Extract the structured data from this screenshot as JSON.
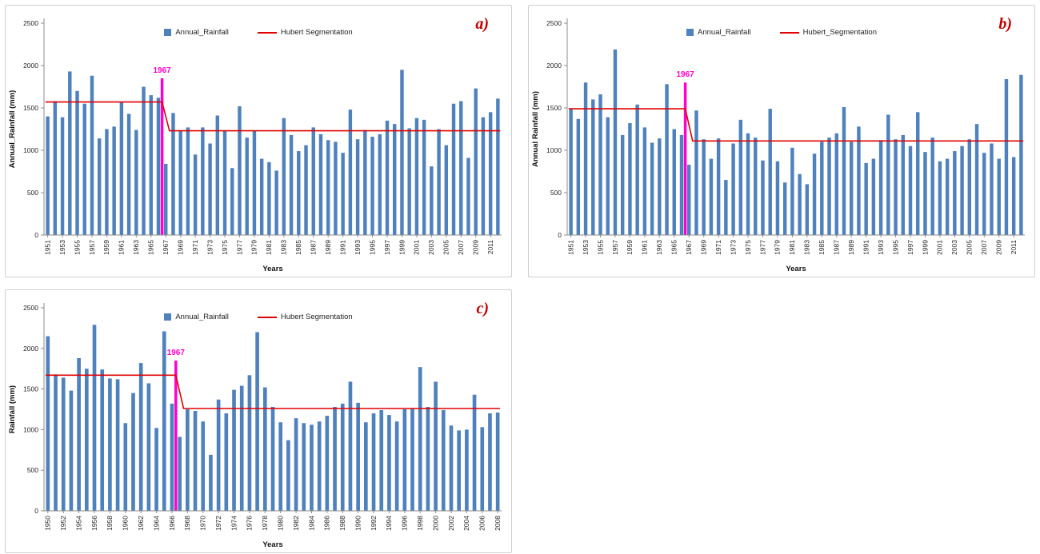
{
  "colors": {
    "bar": "#4f81bd",
    "segmentation_line": "#e00000",
    "break_marker": "#ff00cc",
    "panel_letter": "#c00000",
    "axis": "#8c8c8c"
  },
  "chart_data": [
    {
      "type": "bar",
      "panel_letter": "a)",
      "legend": {
        "bar": "Annual_Rainfall",
        "line": "Hubert Segmentation"
      },
      "ylabel": "Annual_Rainfall (mm)",
      "xlabel": "Years",
      "ylim": [
        0,
        2500
      ],
      "yticks": [
        0,
        500,
        1000,
        1500,
        2000,
        2500
      ],
      "year_start": 1951,
      "year_end": 2012,
      "xtick_step": 2,
      "break_year": 1967,
      "break_label": "1967",
      "break_marker_top": 1850,
      "segments": [
        {
          "start_year": 1951,
          "end_year": 1967,
          "mean": 1570
        },
        {
          "start_year": 1967,
          "end_year": 2012,
          "mean": 1230
        }
      ],
      "values": [
        1400,
        1580,
        1390,
        1930,
        1700,
        1550,
        1880,
        1140,
        1250,
        1280,
        1570,
        1430,
        1240,
        1750,
        1650,
        1620,
        840,
        1440,
        1230,
        1270,
        950,
        1270,
        1080,
        1410,
        1230,
        790,
        1520,
        1150,
        1230,
        900,
        860,
        760,
        1380,
        1180,
        990,
        1060,
        1270,
        1190,
        1120,
        1100,
        970,
        1480,
        1130,
        1240,
        1160,
        1190,
        1350,
        1310,
        1950,
        1260,
        1380,
        1360,
        810,
        1250,
        1060,
        1550,
        1580,
        910,
        1730,
        1390,
        1450,
        1610
      ]
    },
    {
      "type": "bar",
      "panel_letter": "b)",
      "legend": {
        "bar": "Annual_Rainfall",
        "line": "Hubert_Segmentation"
      },
      "ylabel": "Annual Rainfall (mm)",
      "xlabel": "Years",
      "ylim": [
        0,
        2500
      ],
      "yticks": [
        0,
        500,
        1000,
        1500,
        2000,
        2500
      ],
      "year_start": 1951,
      "year_end": 2012,
      "xtick_step": 2,
      "break_year": 1967,
      "break_label": "1967",
      "break_marker_top": 1800,
      "segments": [
        {
          "start_year": 1951,
          "end_year": 1967,
          "mean": 1490
        },
        {
          "start_year": 1967,
          "end_year": 2012,
          "mean": 1110
        }
      ],
      "values": [
        1490,
        1370,
        1800,
        1600,
        1660,
        1390,
        2190,
        1180,
        1320,
        1540,
        1270,
        1090,
        1140,
        1780,
        1250,
        1180,
        830,
        1470,
        1130,
        900,
        1140,
        650,
        1080,
        1360,
        1200,
        1150,
        880,
        1490,
        870,
        620,
        1030,
        720,
        600,
        960,
        1100,
        1150,
        1200,
        1510,
        1100,
        1280,
        850,
        900,
        1120,
        1420,
        1130,
        1180,
        1050,
        1450,
        980,
        1150,
        870,
        900,
        990,
        1050,
        1130,
        1310,
        970,
        1080,
        900,
        1840,
        920,
        1890
      ]
    },
    {
      "type": "bar",
      "panel_letter": "c)",
      "legend": {
        "bar": "Annual_Rainfall",
        "line": "Hubert Segmentation"
      },
      "ylabel": "Rainfall (mm)",
      "xlabel": "Years",
      "ylim": [
        0,
        2500
      ],
      "yticks": [
        0,
        500,
        1000,
        1500,
        2000,
        2500
      ],
      "year_start": 1950,
      "year_end": 2008,
      "xtick_step": 2,
      "break_year": 1967,
      "break_label": "1967",
      "break_marker_top": 1850,
      "segments": [
        {
          "start_year": 1950,
          "end_year": 1967,
          "mean": 1670
        },
        {
          "start_year": 1967,
          "end_year": 2008,
          "mean": 1260
        }
      ],
      "values": [
        2150,
        1680,
        1640,
        1480,
        1880,
        1750,
        2290,
        1740,
        1630,
        1620,
        1080,
        1450,
        1820,
        1570,
        1020,
        2210,
        1320,
        910,
        1250,
        1230,
        1100,
        690,
        1370,
        1200,
        1490,
        1540,
        1670,
        2200,
        1520,
        1280,
        1090,
        870,
        1140,
        1080,
        1060,
        1100,
        1170,
        1280,
        1320,
        1590,
        1330,
        1090,
        1200,
        1240,
        1180,
        1100,
        1250,
        1260,
        1770,
        1280,
        1590,
        1240,
        1050,
        990,
        1000,
        1430,
        1030,
        1200,
        1210
      ]
    }
  ]
}
